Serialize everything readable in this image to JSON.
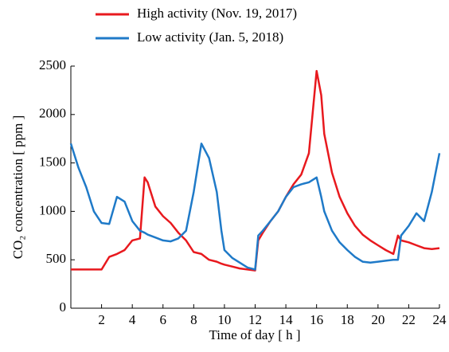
{
  "chart_data": {
    "type": "line",
    "x_label": "Time of day [ h ]",
    "y_label": "CO₂ concentration [ ppm ]",
    "x": [
      0,
      0.5,
      1,
      1.5,
      2,
      2.5,
      3,
      3.5,
      4,
      4.5,
      4.8,
      5,
      5.5,
      6,
      6.5,
      7,
      7.5,
      8,
      8.5,
      9,
      9.5,
      9.8,
      10,
      10.5,
      11,
      11.5,
      12,
      12.2,
      12.5,
      13,
      13.5,
      14,
      14.5,
      15,
      15.5,
      16,
      16.3,
      16.5,
      17,
      17.5,
      18,
      18.5,
      19,
      19.5,
      20,
      20.5,
      21,
      21.3,
      21.5,
      22,
      22.5,
      23,
      23.5,
      24
    ],
    "series": [
      {
        "name": "High activity (Nov. 19, 2017)",
        "color": "#e8191e",
        "values": [
          400,
          400,
          400,
          400,
          400,
          530,
          560,
          600,
          700,
          720,
          1350,
          1300,
          1050,
          950,
          880,
          780,
          700,
          580,
          560,
          500,
          480,
          460,
          450,
          430,
          410,
          400,
          390,
          700,
          780,
          900,
          1000,
          1150,
          1280,
          1380,
          1600,
          2450,
          2200,
          1800,
          1400,
          1150,
          980,
          850,
          760,
          700,
          650,
          600,
          560,
          750,
          700,
          680,
          650,
          620,
          610,
          620
        ]
      },
      {
        "name": "Low activity (Jan. 5, 2018)",
        "color": "#1f7ac8",
        "values": [
          1700,
          1450,
          1250,
          1000,
          880,
          870,
          1150,
          1100,
          900,
          800,
          780,
          760,
          730,
          700,
          690,
          720,
          800,
          1200,
          1700,
          1550,
          1200,
          800,
          600,
          520,
          470,
          420,
          400,
          750,
          800,
          900,
          1000,
          1150,
          1250,
          1280,
          1300,
          1350,
          1150,
          1000,
          800,
          680,
          600,
          530,
          480,
          470,
          480,
          490,
          500,
          500,
          750,
          850,
          980,
          900,
          1200,
          1600
        ]
      }
    ],
    "xlim": [
      0,
      24
    ],
    "xticks": [
      2,
      4,
      6,
      8,
      10,
      12,
      14,
      16,
      18,
      20,
      22,
      24
    ],
    "ylim": [
      0,
      2500
    ],
    "yticks": [
      0,
      500,
      1000,
      1500,
      2000,
      2500
    ]
  }
}
